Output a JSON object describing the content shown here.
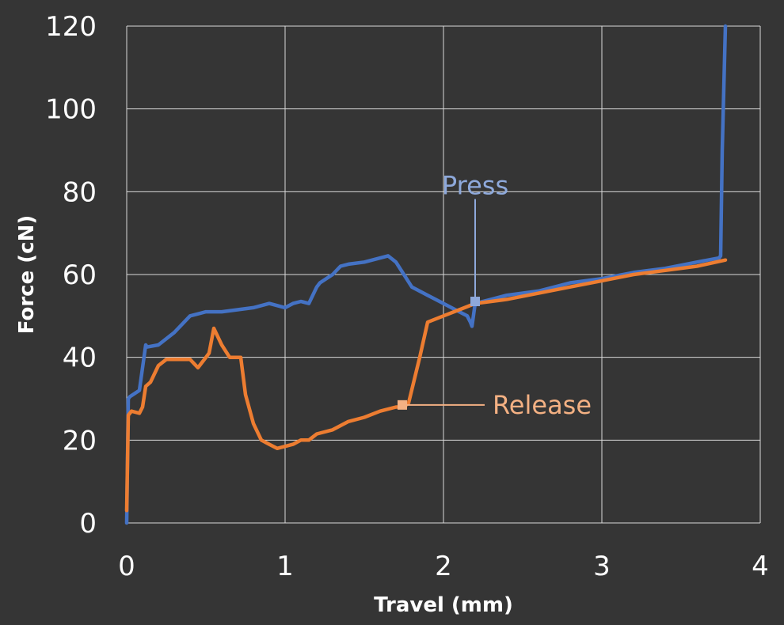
{
  "chart_data": {
    "type": "line",
    "title": "",
    "xlabel": "Travel (mm)",
    "ylabel": "Force (cN)",
    "xlim": [
      0,
      4
    ],
    "ylim": [
      0,
      120
    ],
    "xticks": [
      "0",
      "1",
      "2",
      "3",
      "4"
    ],
    "yticks": [
      "0",
      "20",
      "40",
      "60",
      "80",
      "100",
      "120"
    ],
    "grid": true,
    "legend": "none",
    "series": [
      {
        "color": "#4472C4",
        "x": [
          0,
          0.01,
          0.02,
          0.08,
          0.12,
          0.13,
          0.2,
          0.3,
          0.4,
          0.5,
          0.6,
          0.7,
          0.8,
          0.9,
          1.0,
          1.05,
          1.1,
          1.15,
          1.2,
          1.22,
          1.3,
          1.35,
          1.4,
          1.5,
          1.6,
          1.65,
          1.7,
          1.8,
          1.9,
          2.0,
          2.05,
          2.1,
          2.15,
          2.17,
          2.18,
          2.2,
          2.3,
          2.4,
          2.6,
          2.8,
          3.0,
          3.2,
          3.4,
          3.6,
          3.74,
          3.75,
          3.76,
          3.78
        ],
        "y": [
          0,
          30,
          30.5,
          32,
          43,
          42.5,
          43,
          46,
          50,
          51,
          51,
          51.5,
          52,
          53,
          52,
          53,
          53.5,
          53,
          57,
          58,
          60,
          62,
          62.5,
          63,
          64,
          64.5,
          63,
          57,
          55,
          53,
          52,
          51,
          50,
          48.5,
          47.5,
          53,
          54,
          55,
          56,
          58,
          59,
          60.5,
          61.5,
          63,
          64,
          64.5,
          90,
          120
        ]
      },
      {
        "color": "#ED7D31",
        "x": [
          0,
          0.01,
          0.03,
          0.08,
          0.1,
          0.12,
          0.15,
          0.2,
          0.25,
          0.3,
          0.4,
          0.45,
          0.5,
          0.52,
          0.55,
          0.6,
          0.65,
          0.7,
          0.72,
          0.75,
          0.8,
          0.85,
          0.9,
          0.95,
          1.0,
          1.05,
          1.1,
          1.15,
          1.2,
          1.3,
          1.4,
          1.5,
          1.6,
          1.7,
          1.73,
          1.75,
          1.78,
          1.85,
          1.9,
          2.0,
          2.1,
          2.2,
          2.4,
          2.6,
          2.8,
          3.0,
          3.2,
          3.4,
          3.6,
          3.78
        ],
        "y": [
          3,
          26,
          27,
          26.5,
          28,
          33,
          34,
          38,
          39.5,
          39.5,
          39.5,
          37.5,
          40,
          41,
          47,
          43,
          40,
          40,
          40,
          31,
          24,
          20,
          19,
          18,
          18.5,
          19,
          20,
          20,
          21.5,
          22.5,
          24.5,
          25.5,
          27,
          28,
          28,
          28,
          29,
          40,
          48.5,
          50,
          51.5,
          53,
          54,
          55.5,
          57,
          58.5,
          60,
          61,
          62,
          63.5
        ]
      }
    ],
    "annotations": [
      {
        "text": "Press",
        "color": "#8EA9DB",
        "point": [
          2.2,
          53.5
        ],
        "text_at": [
          2.2,
          79
        ]
      },
      {
        "text": "Release",
        "color": "#F4B183",
        "point": [
          1.74,
          28.5
        ],
        "text_at": [
          2.3,
          28.5
        ]
      }
    ]
  }
}
